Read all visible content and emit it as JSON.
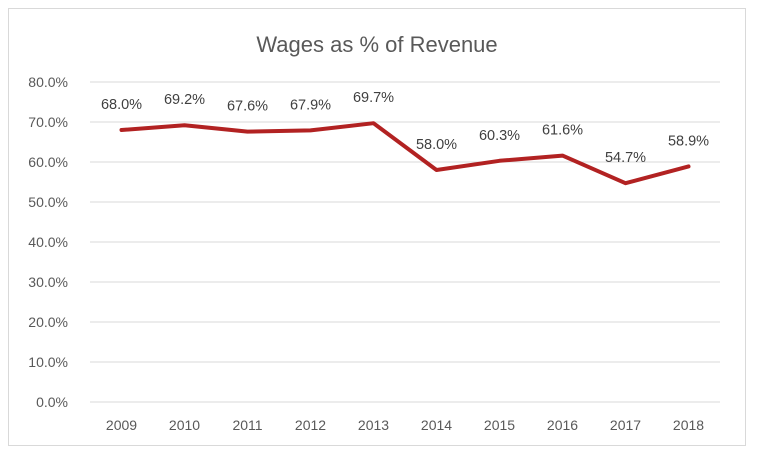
{
  "chart_data": {
    "type": "line",
    "title": "Wages as % of Revenue",
    "categories": [
      "2009",
      "2010",
      "2011",
      "2012",
      "2013",
      "2014",
      "2015",
      "2016",
      "2017",
      "2018"
    ],
    "series": [
      {
        "values": [
          68.0,
          69.2,
          67.6,
          67.9,
          69.7,
          58.0,
          60.3,
          61.6,
          54.7,
          58.9
        ],
        "data_labels": [
          "68.0%",
          "69.2%",
          "67.6%",
          "67.9%",
          "69.7%",
          "58.0%",
          "60.3%",
          "61.6%",
          "54.7%",
          "58.9%"
        ],
        "color": "#b22222"
      }
    ],
    "ylim": [
      0,
      80
    ],
    "y_ticks": [
      0,
      10,
      20,
      30,
      40,
      50,
      60,
      70,
      80
    ],
    "y_tick_labels": [
      "0.0%",
      "10.0%",
      "20.0%",
      "30.0%",
      "40.0%",
      "50.0%",
      "60.0%",
      "70.0%",
      "80.0%"
    ],
    "grid": true,
    "legend": "none",
    "colors": {
      "line": "#b22222",
      "grid": "#d9d9d9",
      "text": "#595959"
    }
  }
}
